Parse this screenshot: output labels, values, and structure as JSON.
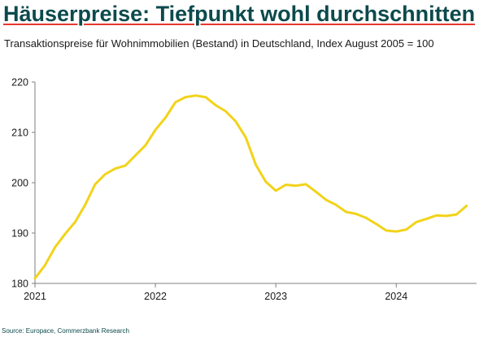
{
  "header": {
    "title": "Häuserpreise: Tiefpunkt wohl durchschnitten",
    "subtitle": "Transaktionspreise für Wohnimmobilien (Bestand) in Deutschland, Index August 2005 = 100"
  },
  "footer": {
    "source": "Source: Europace, Commerzbank Research"
  },
  "colors": {
    "line": "#f2d31a",
    "title": "#0d4a4c",
    "axis": "#7f7f7f"
  },
  "chart_data": {
    "type": "line",
    "title": "",
    "xlabel": "",
    "ylabel": "",
    "grid": false,
    "ylim": [
      180,
      220
    ],
    "xlim": [
      "2021-01",
      "2024-09"
    ],
    "yticks": [
      "180",
      "190",
      "200",
      "210",
      "220"
    ],
    "xticks": [
      {
        "label": "2021",
        "x": "2021-01"
      },
      {
        "label": "2022",
        "x": "2022-01"
      },
      {
        "label": "2023",
        "x": "2023-01"
      },
      {
        "label": "2024",
        "x": "2024-01"
      }
    ],
    "series": [
      {
        "x": [
          "2021-01",
          "2021-02",
          "2021-03",
          "2021-04",
          "2021-05",
          "2021-06",
          "2021-07",
          "2021-08",
          "2021-09",
          "2021-10",
          "2021-11",
          "2021-12",
          "2022-01",
          "2022-02",
          "2022-03",
          "2022-04",
          "2022-05",
          "2022-06",
          "2022-07",
          "2022-08",
          "2022-09",
          "2022-10",
          "2022-11",
          "2022-12",
          "2023-01",
          "2023-02",
          "2023-03",
          "2023-04",
          "2023-05",
          "2023-06",
          "2023-07",
          "2023-08",
          "2023-09",
          "2023-10",
          "2023-11",
          "2023-12",
          "2024-01",
          "2024-02",
          "2024-03",
          "2024-04",
          "2024-05",
          "2024-06",
          "2024-07",
          "2024-08",
          "2024-09"
        ],
        "values": [
          181.0,
          183.6,
          187.2,
          189.8,
          192.2,
          195.6,
          199.7,
          201.7,
          202.8,
          203.4,
          205.4,
          207.4,
          210.5,
          212.9,
          216.0,
          217.0,
          217.3,
          217.0,
          215.4,
          214.2,
          212.2,
          209.0,
          203.6,
          200.2,
          198.4,
          199.6,
          199.4,
          199.7,
          198.2,
          196.6,
          195.6,
          194.2,
          193.8,
          193.0,
          191.8,
          190.5,
          190.3,
          190.7,
          192.2,
          192.8,
          193.5,
          193.4,
          193.7,
          195.4,
          null
        ]
      }
    ]
  }
}
